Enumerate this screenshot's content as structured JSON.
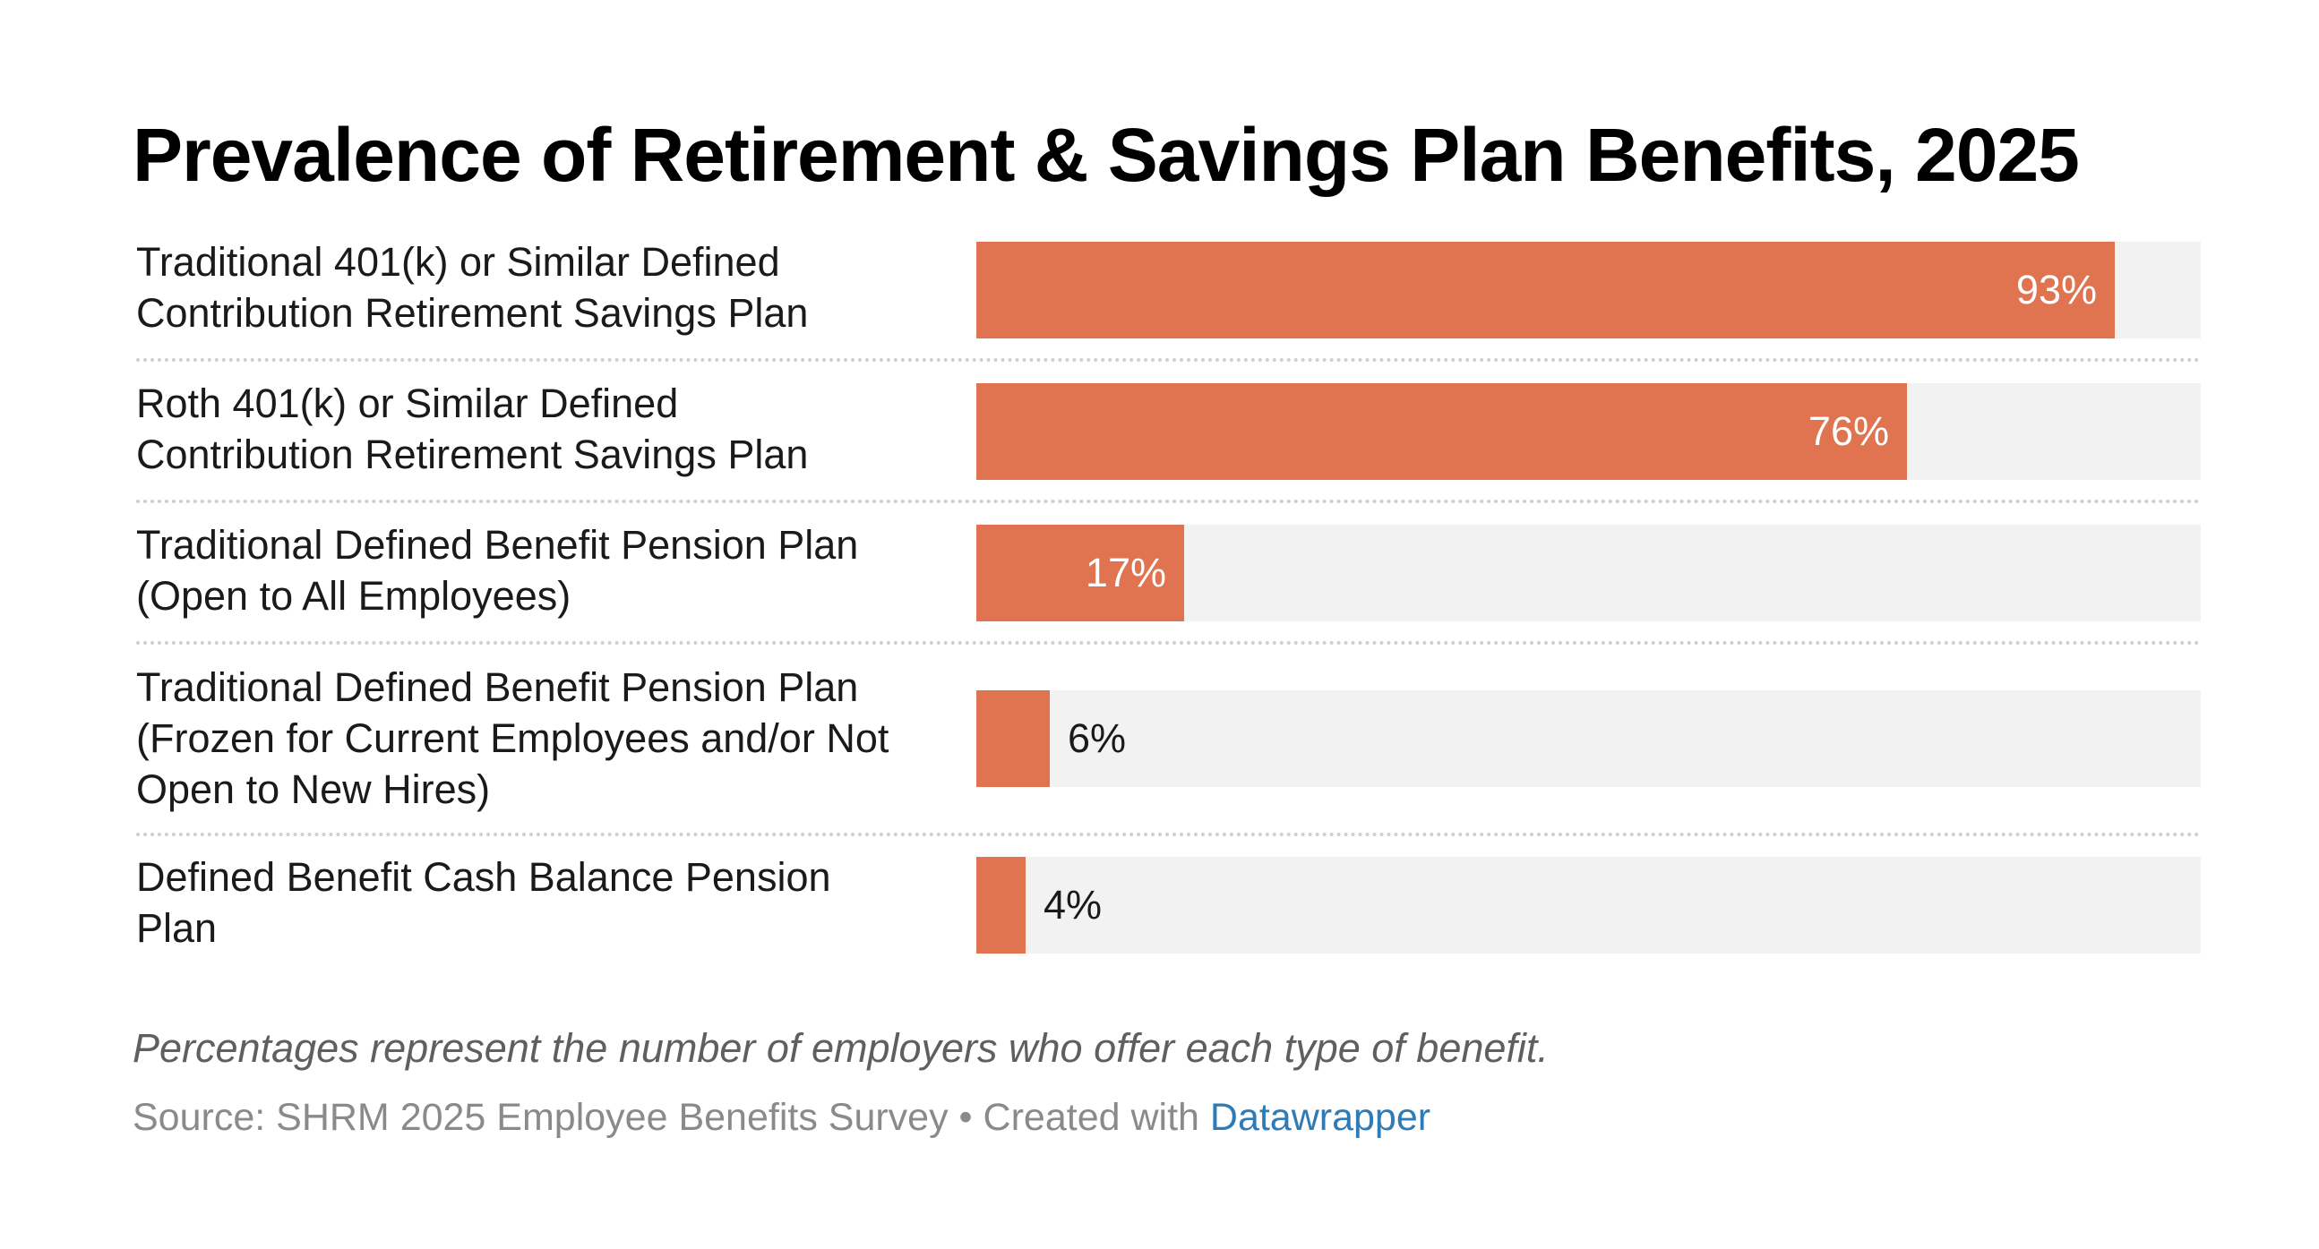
{
  "title": "Prevalence of Retirement & Savings Plan Benefits, 2025",
  "chart_data": {
    "type": "bar",
    "orientation": "horizontal",
    "title": "Prevalence of Retirement & Savings Plan Benefits, 2025",
    "categories": [
      "Traditional 401(k) or Similar Defined Contribution Retirement Savings Plan",
      "Roth 401(k) or Similar Defined Contribution Retirement Savings Plan",
      "Traditional Defined Benefit Pension Plan (Open to All Employees)",
      "Traditional Defined Benefit Pension Plan (Frozen for Current Employees and/or Not Open to New Hires)",
      "Defined Benefit Cash Balance Pension Plan"
    ],
    "label_lines": [
      [
        "Traditional 401(k) or Similar Defined",
        "Contribution Retirement Savings Plan"
      ],
      [
        "Roth 401(k) or Similar Defined",
        "Contribution Retirement Savings Plan"
      ],
      [
        "Traditional Defined Benefit Pension Plan",
        "(Open to All Employees)"
      ],
      [
        "Traditional Defined Benefit Pension Plan",
        "(Frozen for Current Employees and/or Not",
        "Open to New Hires)"
      ],
      [
        "Defined Benefit Cash Balance Pension",
        "Plan"
      ]
    ],
    "values": [
      93,
      76,
      17,
      6,
      4
    ],
    "value_labels": [
      "93%",
      "76%",
      "17%",
      "6%",
      "4%"
    ],
    "unit": "%",
    "xlim": [
      0,
      100
    ],
    "xlabel": "",
    "ylabel": "",
    "grid": false,
    "legend": "none",
    "colors": {
      "bar": "#e07350",
      "track": "#f2f2f2",
      "label_inside": "#ffffff",
      "label_outside": "#1a1a1a"
    }
  },
  "note": "Percentages represent the number of employers who offer each type of benefit.",
  "source": {
    "prefix": "Source: SHRM 2025 Employee Benefits Survey • Created with ",
    "link_text": "Datawrapper"
  }
}
